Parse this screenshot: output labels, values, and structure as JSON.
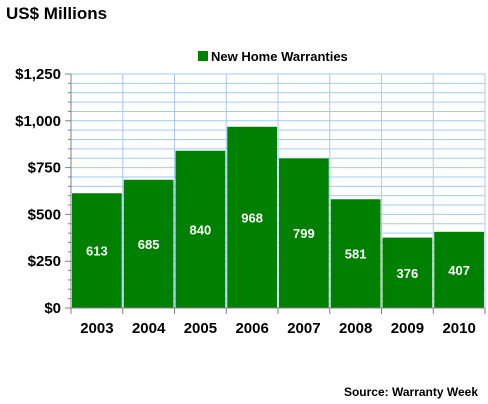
{
  "chart_data": {
    "type": "bar",
    "title": "US$ Millions",
    "categories": [
      "2003",
      "2004",
      "2005",
      "2006",
      "2007",
      "2008",
      "2009",
      "2010"
    ],
    "series": [
      {
        "name": "New Home Warranties",
        "values": [
          613,
          685,
          840,
          968,
          799,
          581,
          376,
          407
        ],
        "color": "#008000"
      }
    ],
    "data_labels": [
      "613",
      "685",
      "840",
      "968",
      "799",
      "581",
      "376",
      "407"
    ],
    "ylim": [
      0,
      1250
    ],
    "y_ticks": [
      0,
      250,
      500,
      750,
      1000,
      1250
    ],
    "y_tick_labels": [
      "$0",
      "$250",
      "$500",
      "$750",
      "$1,000",
      "$1,250"
    ],
    "grid_minor_step": 50,
    "grid": true,
    "grid_color": "#a6caf0",
    "legend_position": "top-center",
    "source": "Source: Warranty Week"
  }
}
